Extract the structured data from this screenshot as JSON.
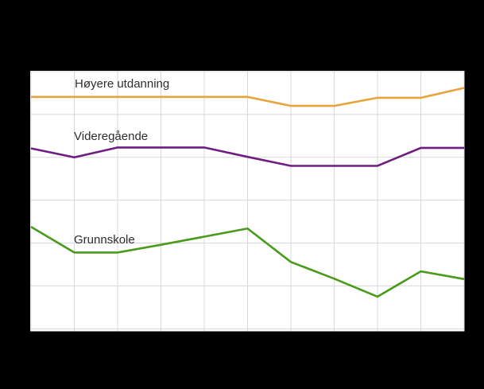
{
  "page": {
    "background_color": "#000000"
  },
  "chart_data": {
    "type": "line",
    "plot_background": "#ffffff",
    "grid_color": "#d8d8d8",
    "grid": true,
    "x_gridline_count": 11,
    "y_gridline_count": 7,
    "axis_tick_labels_visible": false,
    "ylim_grid_units": [
      0,
      6
    ],
    "annotation_labels_inside_plot": true,
    "series": [
      {
        "name": "Høyere utdanning",
        "color": "#e8a33d",
        "values_grid_units": [
          5.41,
          5.41,
          5.41,
          5.41,
          5.41,
          5.41,
          5.2,
          5.2,
          5.39,
          5.39,
          5.62
        ]
      },
      {
        "name": "Videregående",
        "color": "#6f1d82",
        "values_grid_units": [
          4.21,
          4.0,
          4.23,
          4.23,
          4.23,
          4.01,
          3.8,
          3.8,
          3.8,
          4.22,
          4.22
        ]
      },
      {
        "name": "Grunnskole",
        "color": "#4a9a1c",
        "values_grid_units": [
          2.38,
          1.78,
          1.78,
          1.96,
          2.15,
          2.34,
          1.56,
          1.17,
          0.75,
          1.34,
          1.16
        ]
      }
    ]
  }
}
